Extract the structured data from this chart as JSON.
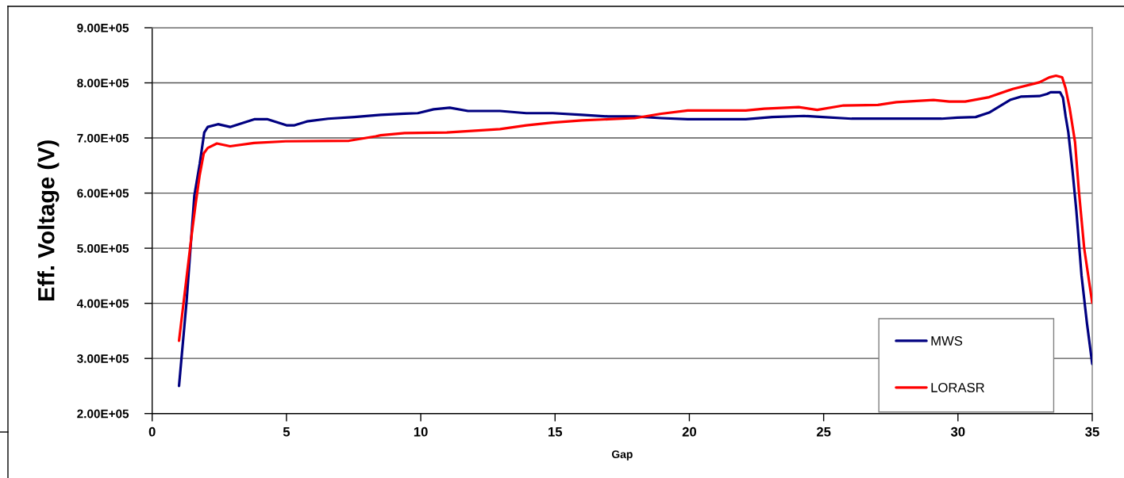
{
  "chart_data": {
    "type": "line",
    "xlabel": "Gap",
    "ylabel": "Eff. Voltage (V)",
    "xlim": [
      0,
      35
    ],
    "xticks": [
      0,
      5,
      10,
      15,
      20,
      25,
      30,
      35
    ],
    "ylim": [
      200000,
      900000
    ],
    "yticks": [
      {
        "value": 200000,
        "label": "2.00E+05"
      },
      {
        "value": 300000,
        "label": "3.00E+05"
      },
      {
        "value": 400000,
        "label": "4.00E+05"
      },
      {
        "value": 500000,
        "label": "5.00E+05"
      },
      {
        "value": 600000,
        "label": "6.00E+05"
      },
      {
        "value": 700000,
        "label": "7.00E+05"
      },
      {
        "value": 800000,
        "label": "8.00E+05"
      },
      {
        "value": 900000,
        "label": "9.00E+05"
      }
    ],
    "grid": "y",
    "legend": "bottom right",
    "line_style": "solid",
    "series": [
      {
        "name": "MWS",
        "color": "#000080",
        "x": [
          1.0,
          1.28,
          1.57,
          1.77,
          1.94,
          2.07,
          2.45,
          2.9,
          3.8,
          4.3,
          5.0,
          5.3,
          5.76,
          6.55,
          7.53,
          8.51,
          9.4,
          9.89,
          10.48,
          11.08,
          11.76,
          12.95,
          13.93,
          14.91,
          16.0,
          16.98,
          17.97,
          18.95,
          19.94,
          22.1,
          23.09,
          24.27,
          24.96,
          26.04,
          29.39,
          29.98,
          30.66,
          31.16,
          31.94,
          32.34,
          33.03,
          33.32,
          33.45,
          33.8,
          33.91,
          34.01,
          34.11,
          34.26,
          34.41,
          34.6,
          34.8,
          35.0
        ],
        "values": [
          250000,
          403000,
          595000,
          653000,
          710000,
          720000,
          725000,
          720000,
          734000,
          734000,
          723000,
          723000,
          730000,
          735000,
          738000,
          742000,
          744000,
          745000,
          752000,
          755000,
          749000,
          749000,
          745000,
          745000,
          742000,
          739000,
          739000,
          736000,
          734000,
          734000,
          738000,
          740000,
          738000,
          735000,
          735000,
          737000,
          738000,
          746000,
          769000,
          775000,
          776000,
          780000,
          783000,
          783000,
          773000,
          739000,
          710000,
          643000,
          567000,
          451000,
          365000,
          290000
        ]
      },
      {
        "name": "LORASR",
        "color": "#ff0000",
        "x": [
          1.0,
          1.48,
          1.62,
          1.77,
          1.92,
          2.07,
          2.41,
          2.9,
          3.79,
          4.97,
          7.33,
          8.32,
          8.51,
          9.4,
          10.97,
          12.95,
          13.93,
          14.91,
          16.0,
          16.98,
          17.97,
          18.95,
          19.94,
          22.1,
          22.79,
          24.07,
          24.76,
          25.74,
          27.02,
          27.71,
          29.09,
          29.68,
          30.27,
          31.16,
          32.04,
          33.03,
          33.4,
          33.65,
          33.88,
          34.01,
          34.16,
          34.36,
          34.5,
          34.7,
          35.0
        ],
        "values": [
          332000,
          528000,
          581000,
          633000,
          672000,
          682000,
          690000,
          685000,
          691000,
          694000,
          695000,
          703000,
          705000,
          709000,
          710000,
          716000,
          723000,
          728000,
          732000,
          734000,
          736000,
          744000,
          750000,
          750000,
          753000,
          756000,
          751000,
          759000,
          760000,
          765000,
          769000,
          766000,
          766000,
          774000,
          789000,
          801000,
          810000,
          813000,
          810000,
          790000,
          754000,
          692000,
          605000,
          500000,
          401000
        ]
      }
    ]
  }
}
